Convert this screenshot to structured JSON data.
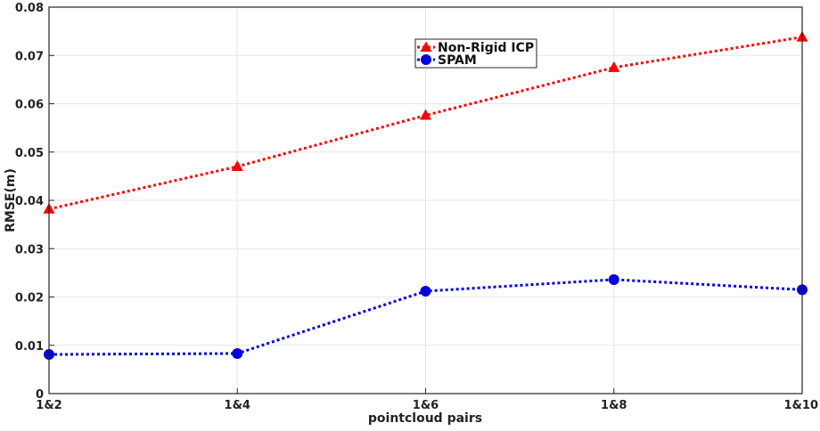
{
  "colors": {
    "non_rigid_icp": "#ff0000",
    "spam": "#0000dd",
    "grid": "#e6e6e6",
    "axis": "#262626"
  },
  "chart_data": {
    "type": "line",
    "categories": [
      "1&2",
      "1&4",
      "1&6",
      "1&8",
      "1&10"
    ],
    "series": [
      {
        "name": "Non-Rigid ICP",
        "marker": "triangle",
        "line_style": "dotted",
        "color": "#ff0000",
        "values": [
          0.0382,
          0.047,
          0.0576,
          0.0675,
          0.0738
        ]
      },
      {
        "name": "SPAM",
        "marker": "circle",
        "line_style": "dotted",
        "color": "#0000dd",
        "values": [
          0.0081,
          0.0083,
          0.0212,
          0.0236,
          0.0215
        ]
      }
    ],
    "xlabel": "pointcloud pairs",
    "ylabel": "RMSE(m)",
    "ylim": [
      0,
      0.08
    ],
    "yticks": [
      "0",
      "0.01",
      "0.02",
      "0.03",
      "0.04",
      "0.05",
      "0.06",
      "0.07",
      "0.08"
    ],
    "grid": true,
    "legend_position": "top-center"
  }
}
